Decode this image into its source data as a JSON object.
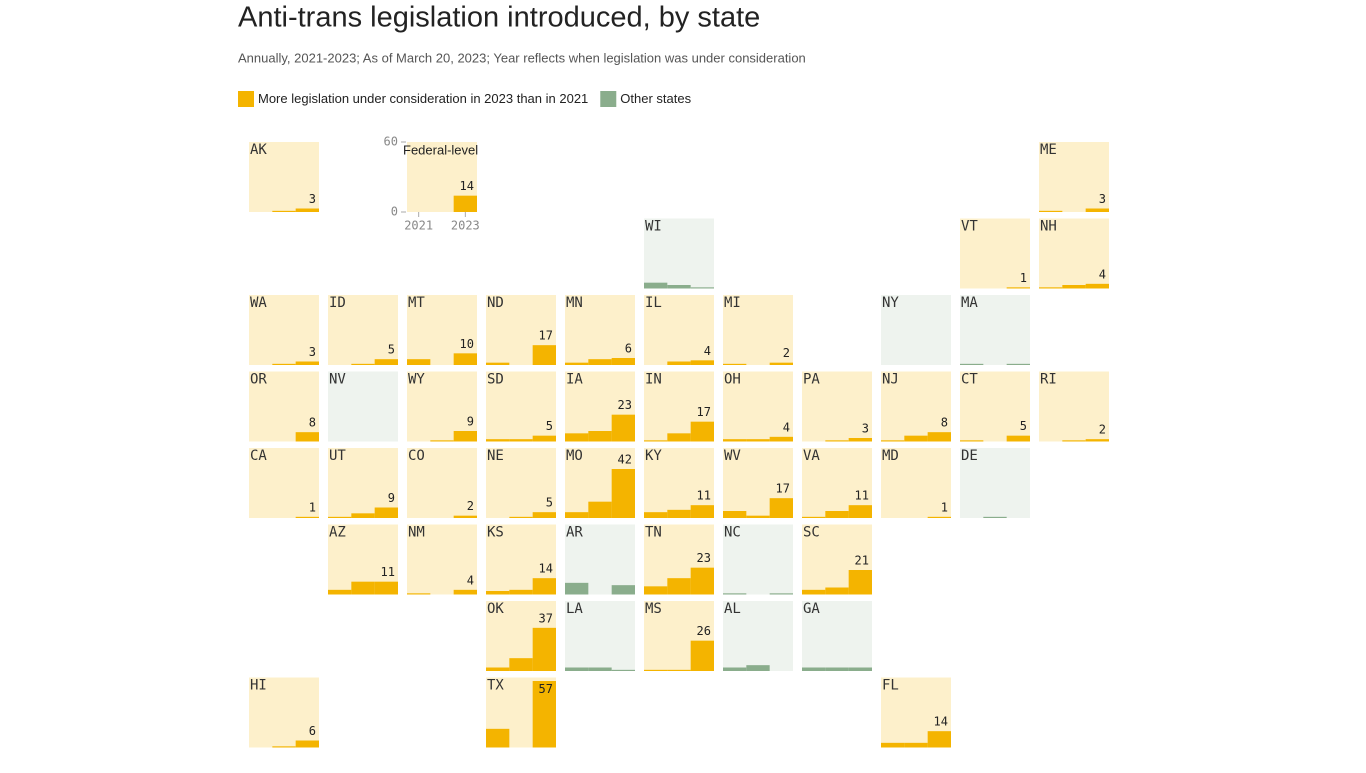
{
  "chart_data": {
    "type": "tile-bar",
    "title": "Anti-trans legislation introduced, by state",
    "subtitle": "Annually, 2021-2023; As of March 20, 2023; Year reflects when legislation was under consideration",
    "categories": [
      "2021",
      null,
      "2023"
    ],
    "ylim": [
      0,
      60
    ],
    "yticks": [
      0,
      60
    ],
    "federal": {
      "name": "Federal-level",
      "values": [
        0,
        0,
        14
      ]
    },
    "series": [
      {
        "name": "More legislation under consideration in 2023 than in 2021",
        "color": "#f4b400",
        "tile_color": "#fdf0cb",
        "show_last_value": true,
        "states": [
          {
            "name": "AK",
            "values": [
              0,
              1,
              3
            ]
          },
          {
            "name": "ME",
            "values": [
              1,
              0,
              3
            ]
          },
          {
            "name": "VT",
            "values": [
              0,
              0,
              1
            ]
          },
          {
            "name": "NH",
            "values": [
              1,
              3,
              4
            ]
          },
          {
            "name": "WA",
            "values": [
              0,
              1,
              3
            ]
          },
          {
            "name": "ID",
            "values": [
              0,
              1,
              5
            ]
          },
          {
            "name": "MT",
            "values": [
              5,
              0,
              10
            ]
          },
          {
            "name": "ND",
            "values": [
              2,
              0,
              17
            ]
          },
          {
            "name": "MN",
            "values": [
              2,
              5,
              6
            ]
          },
          {
            "name": "IL",
            "values": [
              0,
              3,
              4
            ]
          },
          {
            "name": "MI",
            "values": [
              1,
              0,
              2
            ]
          },
          {
            "name": "OR",
            "values": [
              0,
              0,
              8
            ]
          },
          {
            "name": "WY",
            "values": [
              0,
              1,
              9
            ]
          },
          {
            "name": "SD",
            "values": [
              2,
              2,
              5
            ]
          },
          {
            "name": "IA",
            "values": [
              7,
              9,
              23
            ]
          },
          {
            "name": "IN",
            "values": [
              1,
              7,
              17
            ]
          },
          {
            "name": "OH",
            "values": [
              2,
              2,
              4
            ]
          },
          {
            "name": "PA",
            "values": [
              0,
              1,
              3
            ]
          },
          {
            "name": "NJ",
            "values": [
              1,
              5,
              8
            ]
          },
          {
            "name": "CT",
            "values": [
              1,
              0,
              5
            ]
          },
          {
            "name": "RI",
            "values": [
              0,
              1,
              2
            ]
          },
          {
            "name": "CA",
            "values": [
              0,
              0,
              1
            ]
          },
          {
            "name": "UT",
            "values": [
              1,
              4,
              9
            ]
          },
          {
            "name": "CO",
            "values": [
              0,
              0,
              2
            ]
          },
          {
            "name": "NE",
            "values": [
              0,
              1,
              5
            ]
          },
          {
            "name": "MO",
            "values": [
              5,
              14,
              42
            ]
          },
          {
            "name": "KY",
            "values": [
              5,
              7,
              11
            ]
          },
          {
            "name": "WV",
            "values": [
              6,
              2,
              17
            ]
          },
          {
            "name": "VA",
            "values": [
              1,
              6,
              11
            ]
          },
          {
            "name": "MD",
            "values": [
              0,
              0,
              1
            ]
          },
          {
            "name": "AZ",
            "values": [
              4,
              11,
              11
            ]
          },
          {
            "name": "NM",
            "values": [
              1,
              0,
              4
            ]
          },
          {
            "name": "KS",
            "values": [
              3,
              4,
              14
            ]
          },
          {
            "name": "TN",
            "values": [
              7,
              14,
              23
            ]
          },
          {
            "name": "SC",
            "values": [
              4,
              6,
              21
            ]
          },
          {
            "name": "OK",
            "values": [
              3,
              11,
              37
            ]
          },
          {
            "name": "MS",
            "values": [
              1,
              1,
              26
            ]
          },
          {
            "name": "HI",
            "values": [
              0,
              1,
              6
            ]
          },
          {
            "name": "TX",
            "values": [
              16,
              0,
              57
            ]
          },
          {
            "name": "FL",
            "values": [
              4,
              4,
              14
            ]
          }
        ]
      },
      {
        "name": "Other states",
        "color": "#8aad8c",
        "tile_color": "#eef3ee",
        "show_last_value": false,
        "states": [
          {
            "name": "WI",
            "values": [
              5,
              3,
              1
            ]
          },
          {
            "name": "NY",
            "values": [
              0,
              0,
              0
            ]
          },
          {
            "name": "MA",
            "values": [
              1,
              0,
              1
            ]
          },
          {
            "name": "NV",
            "values": [
              0,
              0,
              0
            ]
          },
          {
            "name": "DE",
            "values": [
              0,
              1,
              0
            ]
          },
          {
            "name": "AR",
            "values": [
              10,
              0,
              8
            ]
          },
          {
            "name": "NC",
            "values": [
              1,
              0,
              1
            ]
          },
          {
            "name": "LA",
            "values": [
              3,
              3,
              1
            ]
          },
          {
            "name": "AL",
            "values": [
              3,
              5,
              0
            ]
          },
          {
            "name": "GA",
            "values": [
              3,
              3,
              3
            ]
          }
        ]
      }
    ]
  }
}
